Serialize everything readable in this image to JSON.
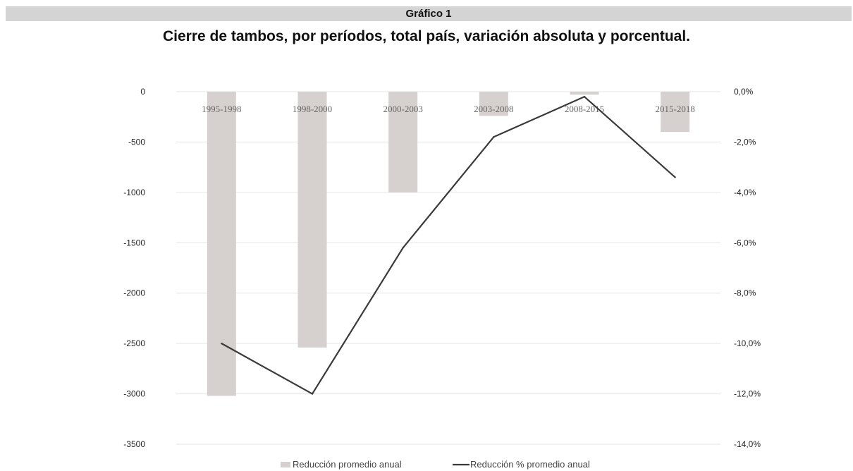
{
  "header": {
    "figure_label": "Gráfico 1",
    "title": "Cierre de tambos, por períodos, total país, variación absoluta y porcentual."
  },
  "chart_data": {
    "type": "bar",
    "categories": [
      "1995-1998",
      "1998-2000",
      "2000-2003",
      "2003-2008",
      "2008-2015",
      "2015-2018"
    ],
    "series": [
      {
        "name": "Reducción promedio anual",
        "type": "bar",
        "axis": "left",
        "color": "#d6d0ce",
        "values": [
          -3020,
          -2540,
          -1000,
          -240,
          -30,
          -400
        ]
      },
      {
        "name": "Reducción % promedio anual",
        "type": "line",
        "axis": "right",
        "color": "#3a3a3a",
        "values": [
          -10.0,
          -12.0,
          -6.2,
          -1.8,
          -0.2,
          -3.4
        ]
      }
    ],
    "y_left": {
      "ylim": [
        -3500,
        0
      ],
      "ticks": [
        0,
        -500,
        -1000,
        -1500,
        -2000,
        -2500,
        -3000,
        -3500
      ],
      "tick_labels": [
        "0",
        "-500",
        "-1000",
        "-1500",
        "-2000",
        "-2500",
        "-3000",
        "-3500"
      ]
    },
    "y_right": {
      "ylim": [
        -14,
        0
      ],
      "ticks": [
        0,
        -2,
        -4,
        -6,
        -8,
        -10,
        -12,
        -14
      ],
      "tick_labels": [
        "0,0%",
        "-2,0%",
        "-4,0%",
        "-6,0%",
        "-8,0%",
        "-10,0%",
        "-12,0%",
        "-14,0%"
      ]
    },
    "grid": true,
    "legend_position": "bottom-center"
  }
}
